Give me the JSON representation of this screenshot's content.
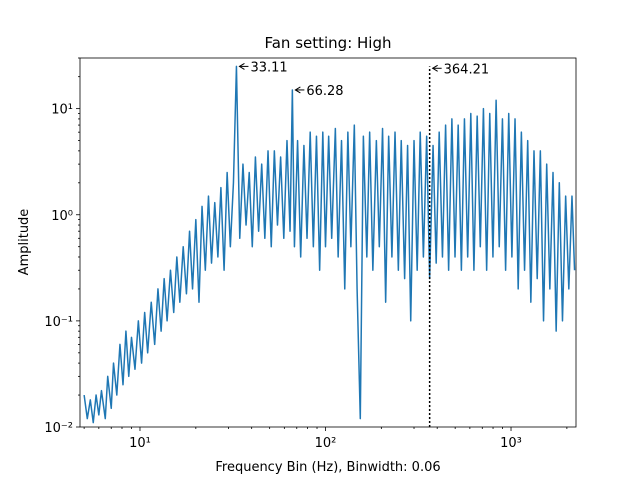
{
  "chart_data": {
    "type": "line",
    "title": "Fan setting: High",
    "x_label": "Frequency Bin (Hz), Binwidth: 0.06",
    "y_label": "Amplitude",
    "log_x": true,
    "log_y": true,
    "xlim": [
      4.75,
      2240
    ],
    "ylim": [
      0.01,
      30
    ],
    "xticks": [
      {
        "value": 10,
        "label": "10¹"
      },
      {
        "value": 100,
        "label": "10²"
      },
      {
        "value": 1000,
        "label": "10³"
      }
    ],
    "yticks": [
      {
        "value": 0.01,
        "label": "10⁻²"
      },
      {
        "value": 0.1,
        "label": "10⁻¹"
      },
      {
        "value": 1,
        "label": "10⁰"
      },
      {
        "value": 10,
        "label": "10¹"
      }
    ],
    "series": [
      {
        "color": "#1f77b4",
        "x": [
          5.0,
          5.2,
          5.4,
          5.6,
          5.8,
          6.0,
          6.2,
          6.5,
          6.7,
          7.0,
          7.2,
          7.5,
          7.8,
          8.1,
          8.4,
          8.7,
          9.0,
          9.4,
          9.8,
          10.2,
          10.6,
          11.0,
          11.5,
          12.0,
          12.5,
          13.0,
          13.5,
          14.0,
          14.6,
          15.2,
          15.8,
          16.4,
          17.1,
          17.8,
          18.5,
          19.2,
          20.0,
          20.8,
          21.6,
          22.5,
          23.4,
          24.3,
          25.3,
          26.3,
          27.3,
          28.4,
          29.5,
          30.7,
          31.9,
          33.11,
          34.5,
          35.9,
          37.3,
          38.8,
          40.3,
          41.9,
          43.6,
          45.3,
          47.1,
          49.0,
          51.0,
          53.0,
          55.1,
          57.3,
          59.6,
          62.0,
          64.4,
          66.28,
          68.0,
          70.7,
          73.5,
          76.5,
          79.5,
          82.7,
          86.0,
          89.4,
          93.0,
          96.7,
          100,
          104,
          108,
          113,
          117,
          122,
          127,
          132,
          137,
          143,
          148,
          154,
          160,
          167,
          173,
          180,
          188,
          195,
          203,
          211,
          219,
          228,
          237,
          247,
          256,
          267,
          277,
          288,
          300,
          312,
          324,
          337,
          351,
          364.21,
          380,
          395,
          410,
          427,
          444,
          461,
          480,
          499,
          519,
          540,
          561,
          584,
          607,
          631,
          657,
          683,
          710,
          739,
          768,
          799,
          831,
          864,
          899,
          935,
          972,
          1011,
          1051,
          1093,
          1137,
          1183,
          1230,
          1279,
          1330,
          1384,
          1439,
          1497,
          1557,
          1619,
          1684,
          1751,
          1821,
          1894,
          1970,
          2049,
          2131,
          2200
        ],
        "values": [
          0.02,
          0.012,
          0.018,
          0.011,
          0.02,
          0.013,
          0.022,
          0.012,
          0.03,
          0.015,
          0.04,
          0.02,
          0.06,
          0.025,
          0.08,
          0.03,
          0.07,
          0.035,
          0.1,
          0.04,
          0.12,
          0.05,
          0.15,
          0.06,
          0.2,
          0.08,
          0.25,
          0.1,
          0.3,
          0.12,
          0.4,
          0.15,
          0.5,
          0.18,
          0.7,
          0.2,
          0.9,
          0.15,
          1.2,
          0.3,
          1.5,
          0.35,
          1.3,
          0.4,
          1.8,
          0.3,
          2.5,
          0.5,
          2.0,
          25,
          0.6,
          3.0,
          0.8,
          2.5,
          0.5,
          3.5,
          0.7,
          3.0,
          0.6,
          4.0,
          0.5,
          4.0,
          0.8,
          3.5,
          0.6,
          5.0,
          0.7,
          15,
          0.5,
          5.0,
          0.4,
          4.5,
          0.6,
          6.0,
          0.5,
          5.5,
          0.3,
          6.0,
          0.5,
          5.5,
          0.6,
          6.5,
          0.4,
          5.0,
          0.2,
          6.0,
          0.5,
          7.0,
          0.2,
          0.012,
          5.5,
          0.4,
          6.0,
          0.3,
          5.0,
          0.5,
          6.5,
          0.15,
          5.5,
          0.4,
          6.0,
          0.3,
          5.0,
          0.25,
          4.5,
          0.1,
          5.0,
          0.3,
          6.0,
          0.4,
          5.5,
          0.25,
          4.5,
          0.35,
          6.0,
          0.4,
          7.0,
          0.3,
          8.0,
          0.4,
          7.0,
          0.3,
          8.0,
          0.4,
          9.0,
          0.3,
          8.5,
          0.5,
          10.0,
          0.3,
          9.0,
          0.4,
          12.0,
          0.5,
          8.0,
          0.3,
          9.0,
          0.4,
          8.0,
          0.2,
          6.0,
          0.3,
          5.0,
          0.15,
          4.0,
          0.25,
          4.0,
          0.1,
          3.0,
          0.2,
          2.5,
          0.08,
          2.0,
          0.1,
          1.5,
          0.2,
          1.5,
          0.3
        ]
      }
    ],
    "vlines": [
      {
        "x": 364.21,
        "top": 25
      }
    ],
    "annotations": [
      {
        "x": 33.11,
        "y": 25,
        "text": "33.11"
      },
      {
        "x": 66.28,
        "y": 15,
        "text": "66.28"
      },
      {
        "x": 364.21,
        "y": 24,
        "text": "364.21"
      }
    ]
  }
}
